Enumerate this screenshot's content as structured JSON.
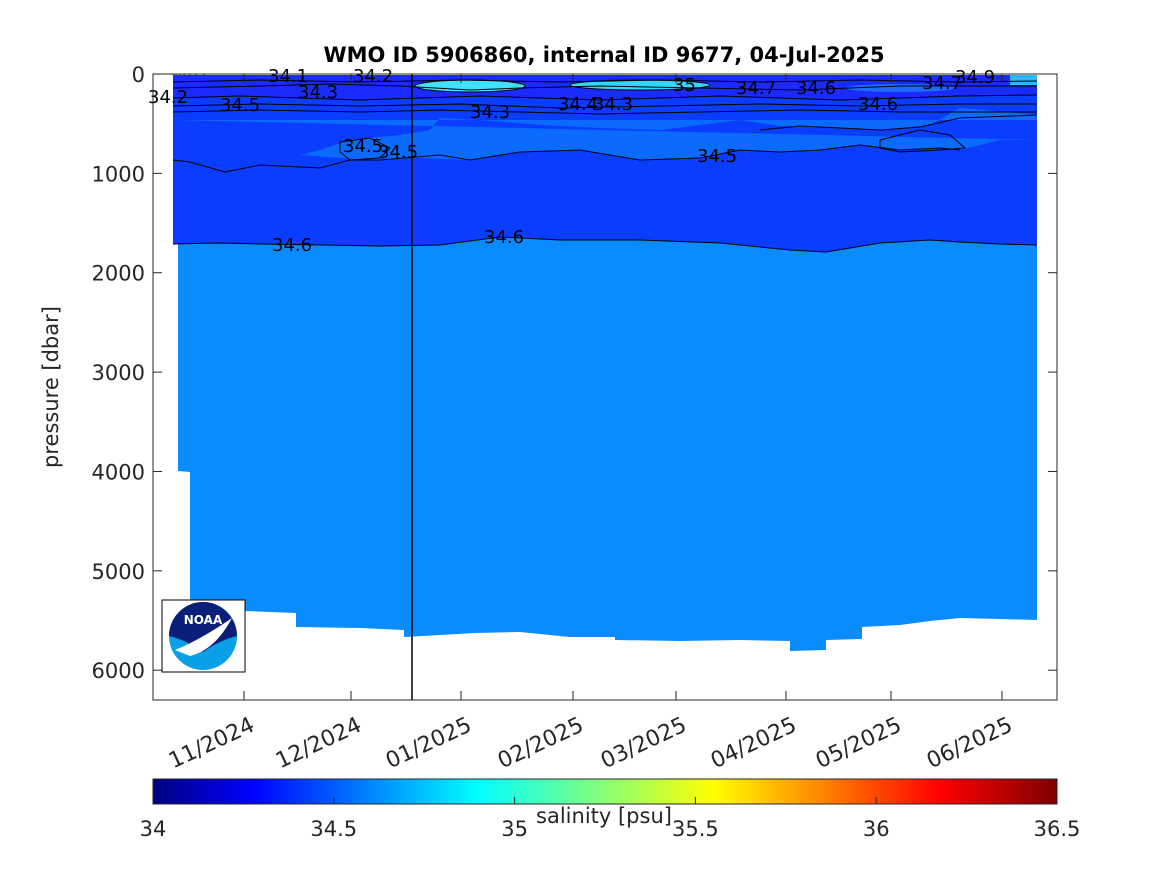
{
  "chart_data": {
    "type": "heatmap",
    "title": "WMO ID 5906860, internal ID 9677, 04-Jul-2025",
    "ylabel": "pressure [dbar]",
    "colorbar_label": "salinity [psu]",
    "y_axis": {
      "reversed": true,
      "ticks": [
        0,
        1000,
        2000,
        3000,
        4000,
        5000,
        6000
      ]
    },
    "x_axis": {
      "tick_labels": [
        "11/2024",
        "12/2024",
        "01/2025",
        "02/2025",
        "03/2025",
        "04/2025",
        "05/2025",
        "06/2025"
      ]
    },
    "colorbar": {
      "range": [
        34,
        36.5
      ],
      "ticks": [
        "34",
        "34.5",
        "35",
        "35.5",
        "36",
        "36.5"
      ]
    },
    "selected_date": "12/2024",
    "contour_labels": [
      {
        "text": "34.1"
      },
      {
        "text": "34.2"
      },
      {
        "text": "34.2"
      },
      {
        "text": "34.3"
      },
      {
        "text": "34.3"
      },
      {
        "text": "34.3"
      },
      {
        "text": "34.4"
      },
      {
        "text": "34.5"
      },
      {
        "text": "34.5"
      },
      {
        "text": "34.5"
      },
      {
        "text": "34.5"
      },
      {
        "text": "34.6"
      },
      {
        "text": "34.6"
      },
      {
        "text": "34.6"
      },
      {
        "text": "34.6"
      },
      {
        "text": "34.7"
      },
      {
        "text": "34.7"
      },
      {
        "text": "34.9"
      },
      {
        "text": "35"
      }
    ],
    "bands": [
      {
        "range": [
          0,
          60
        ],
        "value": 34.3
      },
      {
        "range": [
          60,
          180
        ],
        "value": 34.3
      },
      {
        "range": [
          180,
          900
        ],
        "value": 34.52
      },
      {
        "range": [
          900,
          1700
        ],
        "value": 34.55
      },
      {
        "range": [
          1700,
          5600
        ],
        "value": 34.65
      }
    ],
    "colors": {
      "band_upper": "#0a3dff",
      "band_deep": "#0a8cff",
      "band_blob": "#0b6bff",
      "surface_fresh": "#1a2bff",
      "surface_warm": "#40e0ff",
      "contour": "#000000"
    }
  },
  "logo": {
    "text": "NOAA"
  }
}
